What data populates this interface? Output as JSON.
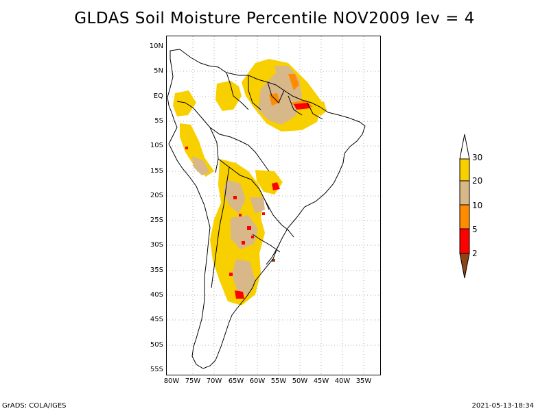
{
  "title": "GLDAS Soil Moisture Percentile NOV2009 lev = 4",
  "lat_labels": [
    "10N",
    "5N",
    "EQ",
    "5S",
    "10S",
    "15S",
    "20S",
    "25S",
    "30S",
    "35S",
    "40S",
    "45S",
    "50S",
    "55S"
  ],
  "lon_labels": [
    "80W",
    "75W",
    "70W",
    "65W",
    "60W",
    "55W",
    "50W",
    "45W",
    "40W",
    "35W"
  ],
  "legend": {
    "levels": [
      "30",
      "20",
      "10",
      "5",
      "2"
    ],
    "colors": {
      "over30": "#ffffff",
      "20_30": "#f8d000",
      "10_20": "#d8b888",
      "5_10": "#ff8c00",
      "2_5": "#ff0000",
      "under2": "#8b4513"
    }
  },
  "footer": {
    "left": "GrADS: COLA/IGES",
    "right": "2021-05-13-18:34"
  }
}
